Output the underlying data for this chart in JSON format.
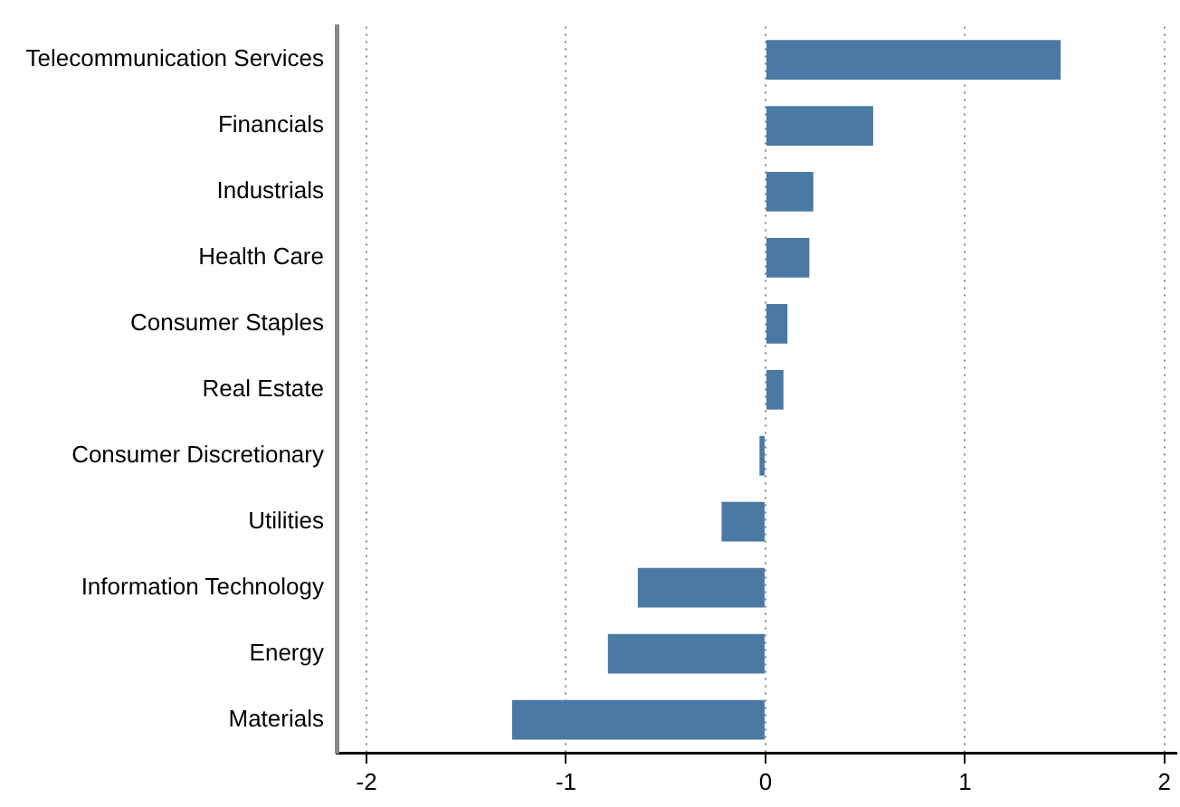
{
  "chart_data": {
    "type": "bar",
    "orientation": "horizontal",
    "categories": [
      "Telecommunication Services",
      "Financials",
      "Industrials",
      "Health Care",
      "Consumer Staples",
      "Real Estate",
      "Consumer Discretionary",
      "Utilities",
      "Information Technology",
      "Energy",
      "Materials"
    ],
    "values": [
      1.48,
      0.54,
      0.24,
      0.22,
      0.11,
      0.09,
      -0.03,
      -0.22,
      -0.64,
      -0.79,
      -1.27
    ],
    "color": "#4a79a4",
    "xlim": [
      -2.15,
      2.06
    ],
    "xticks": [
      -2,
      -1,
      0,
      1,
      2
    ],
    "grid": "x",
    "legend": false
  }
}
